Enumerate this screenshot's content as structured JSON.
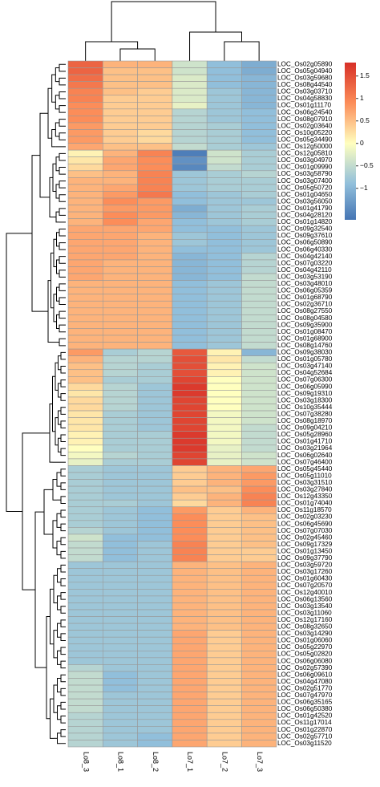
{
  "chart_data": {
    "type": "heatmap",
    "title": "",
    "xlabel": "",
    "ylabel": "",
    "columns": [
      "Lo8_3",
      "Lo8_1",
      "Lo8_2",
      "Lo7_1",
      "Lo7_2",
      "Lo7_3"
    ],
    "rows": [
      "LOC_Os02g05890",
      "LOC_Os05g04940",
      "LOC_Os03g59680",
      "LOC_Os08g44540",
      "LOC_Os03g03710",
      "LOC_Os04g58830",
      "LOC_Os01g11170",
      "LOC_Os06g24540",
      "LOC_Os08g07910",
      "LOC_Os02g03640",
      "LOC_Os10g05220",
      "LOC_Os05g34490",
      "LOC_Os12g50000",
      "LOC_Os12g05810",
      "LOC_Os03g04970",
      "LOC_Os01g09990",
      "LOC_Os03g58790",
      "LOC_Os03g07400",
      "LOC_Os05g50720",
      "LOC_Os01g04650",
      "LOC_Os03g56050",
      "LOC_Os01g41790",
      "LOC_Os04g28120",
      "LOC_Os01g14820",
      "LOC_Os09g32540",
      "LOC_Os09g37610",
      "LOC_Os06g50890",
      "LOC_Os06g40330",
      "LOC_Os04g42140",
      "LOC_Os07g03220",
      "LOC_Os04g42110",
      "LOC_Os03g53190",
      "LOC_Os03g48010",
      "LOC_Os06g05359",
      "LOC_Os01g68790",
      "LOC_Os02g36710",
      "LOC_Os08g27550",
      "LOC_Os08g04580",
      "LOC_Os09g35900",
      "LOC_Os01g08470",
      "LOC_Os01g68900",
      "LOC_Os08g14760",
      "LOC_Os09g38030",
      "LOC_Os01g05780",
      "LOC_Os03g47140",
      "LOC_Os04g52684",
      "LOC_Os07g06300",
      "LOC_Os06g05990",
      "LOC_Os09g19310",
      "LOC_Os03g18300",
      "LOC_Os10g35444",
      "LOC_Os07g38280",
      "LOC_Os08g18970",
      "LOC_Os09g04210",
      "LOC_Os05g28960",
      "LOC_Os01g41710",
      "LOC_Os03g21964",
      "LOC_Os06g02640",
      "LOC_Os07g46400",
      "LOC_Os05g45440",
      "LOC_Os05g11010",
      "LOC_Os03g31510",
      "LOC_Os03g27840",
      "LOC_Os12g43350",
      "LOC_Os01g74040",
      "LOC_Os11g18570",
      "LOC_Os02g03230",
      "LOC_Os06g45690",
      "LOC_Os07g07030",
      "LOC_Os02g45460",
      "LOC_Os09g17329",
      "LOC_Os01g13450",
      "LOC_Os09g37790",
      "LOC_Os03g59720",
      "LOC_Os03g17260",
      "LOC_Os01g60430",
      "LOC_Os07g20570",
      "LOC_Os12g40010",
      "LOC_Os06g13560",
      "LOC_Os03g13540",
      "LOC_Os03g11060",
      "LOC_Os12g17160",
      "LOC_Os08g32650",
      "LOC_Os03g14290",
      "LOC_Os01g06060",
      "LOC_Os05g22970",
      "LOC_Os05g02820",
      "LOC_Os06g06080",
      "LOC_Os02g57390",
      "LOC_Os06g09610",
      "LOC_Os04g47080",
      "LOC_Os02g51770",
      "LOC_Os07g47970",
      "LOC_Os06g35165",
      "LOC_Os06g50380",
      "LOC_Os01g42520",
      "LOC_Os11g17014",
      "LOC_Os01g22870",
      "LOC_Os02g57710",
      "LOC_Os03g11520"
    ],
    "values": [
      [
        1.3,
        0.6,
        0.6,
        -0.4,
        -0.9,
        -1.1
      ],
      [
        1.3,
        0.5,
        0.5,
        -0.4,
        -0.9,
        -1.1
      ],
      [
        1.2,
        0.5,
        0.5,
        -0.3,
        -0.9,
        -1.0
      ],
      [
        1.1,
        0.5,
        0.5,
        -0.3,
        -0.9,
        -1.0
      ],
      [
        1.0,
        0.5,
        0.4,
        -0.3,
        -0.8,
        -1.0
      ],
      [
        1.0,
        0.4,
        0.4,
        -0.3,
        -0.8,
        -1.0
      ],
      [
        0.9,
        0.4,
        0.4,
        -0.2,
        -0.8,
        -1.0
      ],
      [
        0.9,
        0.4,
        0.4,
        -0.6,
        -0.8,
        -0.9
      ],
      [
        0.9,
        0.4,
        0.4,
        -0.6,
        -0.8,
        -0.9
      ],
      [
        0.8,
        0.4,
        0.4,
        -0.6,
        -0.7,
        -0.9
      ],
      [
        0.8,
        0.4,
        0.3,
        -0.6,
        -0.7,
        -0.9
      ],
      [
        0.8,
        0.4,
        0.3,
        -0.6,
        -0.7,
        -0.9
      ],
      [
        0.7,
        0.5,
        0.5,
        -0.5,
        -0.7,
        -0.8
      ],
      [
        0.1,
        0.6,
        1.0,
        -1.6,
        -0.4,
        -0.7
      ],
      [
        0.2,
        0.7,
        0.9,
        -1.4,
        -0.4,
        -0.7
      ],
      [
        0.3,
        0.7,
        0.9,
        -1.5,
        -0.5,
        -0.7
      ],
      [
        0.5,
        0.6,
        1.0,
        -0.8,
        -0.7,
        -0.6
      ],
      [
        0.6,
        0.6,
        1.0,
        -0.8,
        -0.7,
        -0.7
      ],
      [
        0.6,
        0.7,
        1.0,
        -0.8,
        -0.7,
        -0.7
      ],
      [
        0.6,
        0.8,
        1.1,
        -0.9,
        -0.8,
        -0.7
      ],
      [
        0.6,
        0.9,
        0.8,
        -0.9,
        -0.8,
        -0.8
      ],
      [
        0.6,
        0.8,
        0.8,
        -1.1,
        -0.8,
        -0.7
      ],
      [
        0.6,
        0.9,
        0.8,
        -1.0,
        -0.8,
        -0.7
      ],
      [
        0.6,
        0.9,
        0.7,
        -0.9,
        -0.8,
        -0.7
      ],
      [
        0.7,
        0.7,
        0.7,
        -0.9,
        -0.9,
        -0.8
      ],
      [
        0.7,
        0.7,
        0.6,
        -0.8,
        -0.9,
        -0.8
      ],
      [
        0.7,
        0.7,
        0.6,
        -0.8,
        -0.9,
        -0.8
      ],
      [
        0.7,
        0.7,
        0.6,
        -0.9,
        -0.9,
        -0.8
      ],
      [
        0.7,
        0.7,
        0.6,
        -1.0,
        -0.9,
        -0.6
      ],
      [
        0.7,
        0.6,
        0.6,
        -1.0,
        -0.9,
        -0.6
      ],
      [
        0.7,
        0.6,
        0.6,
        -1.0,
        -0.9,
        -0.6
      ],
      [
        0.7,
        0.6,
        0.6,
        -1.0,
        -0.9,
        -0.5
      ],
      [
        0.6,
        0.6,
        0.6,
        -0.9,
        -0.8,
        -0.5
      ],
      [
        0.6,
        0.6,
        0.6,
        -0.9,
        -0.8,
        -0.5
      ],
      [
        0.6,
        0.6,
        0.6,
        -0.9,
        -0.8,
        -0.5
      ],
      [
        0.6,
        0.6,
        0.6,
        -0.9,
        -0.8,
        -0.5
      ],
      [
        0.6,
        0.6,
        0.6,
        -0.9,
        -0.8,
        -0.5
      ],
      [
        0.6,
        0.6,
        0.6,
        -0.9,
        -0.8,
        -0.5
      ],
      [
        0.6,
        0.6,
        0.6,
        -0.9,
        -0.8,
        -0.5
      ],
      [
        0.6,
        0.6,
        0.6,
        -0.9,
        -0.8,
        -0.5
      ],
      [
        0.6,
        0.6,
        0.6,
        -0.9,
        -0.8,
        -0.5
      ],
      [
        0.6,
        0.6,
        0.6,
        -0.9,
        -0.8,
        -0.5
      ],
      [
        0.8,
        -0.7,
        -0.6,
        1.4,
        0.1,
        -1.0
      ],
      [
        0.6,
        -0.6,
        -0.6,
        1.5,
        0.2,
        -0.5
      ],
      [
        0.5,
        -0.6,
        -0.7,
        1.5,
        0.1,
        -0.4
      ],
      [
        0.5,
        -0.6,
        -0.7,
        1.5,
        0.1,
        -0.4
      ],
      [
        0.5,
        -0.7,
        -0.7,
        1.6,
        0.0,
        -0.4
      ],
      [
        0.3,
        -0.6,
        -0.8,
        1.7,
        0.0,
        -0.4
      ],
      [
        0.2,
        -0.6,
        -0.8,
        1.7,
        0.0,
        -0.4
      ],
      [
        0.3,
        -0.6,
        -0.8,
        1.6,
        0.0,
        -0.4
      ],
      [
        0.3,
        -0.6,
        -0.8,
        1.6,
        0.0,
        -0.4
      ],
      [
        0.2,
        -0.7,
        -0.8,
        1.6,
        -0.1,
        -0.4
      ],
      [
        0.2,
        -0.7,
        -0.8,
        1.6,
        -0.1,
        -0.4
      ],
      [
        0.2,
        -0.7,
        -0.8,
        1.6,
        -0.1,
        -0.5
      ],
      [
        0.1,
        -0.7,
        -0.7,
        1.7,
        -0.1,
        -0.5
      ],
      [
        0.1,
        -0.7,
        -0.7,
        1.7,
        -0.1,
        -0.5
      ],
      [
        0.0,
        -0.7,
        -0.7,
        1.7,
        -0.2,
        -0.5
      ],
      [
        -0.1,
        -0.6,
        -0.7,
        1.6,
        -0.2,
        -0.4
      ],
      [
        -0.2,
        -0.7,
        -0.7,
        1.6,
        -0.2,
        -0.4
      ],
      [
        -0.7,
        -0.8,
        -0.8,
        0.4,
        0.6,
        0.7
      ],
      [
        -0.7,
        -0.8,
        -0.8,
        0.4,
        0.6,
        0.8
      ],
      [
        -0.7,
        -0.8,
        -0.8,
        0.4,
        0.6,
        0.8
      ],
      [
        -0.7,
        -0.8,
        -0.8,
        0.5,
        0.5,
        0.9
      ],
      [
        -0.7,
        -0.8,
        -0.8,
        0.4,
        0.6,
        1.0
      ],
      [
        -0.7,
        -0.7,
        -0.8,
        0.3,
        0.6,
        1.0
      ],
      [
        -0.7,
        -0.8,
        -0.9,
        0.8,
        0.4,
        0.6
      ],
      [
        -0.7,
        -0.8,
        -0.9,
        0.9,
        0.4,
        0.5
      ],
      [
        -0.7,
        -0.8,
        -0.9,
        0.9,
        0.4,
        0.5
      ],
      [
        -0.6,
        -0.8,
        -0.9,
        0.9,
        0.4,
        0.5
      ],
      [
        -0.4,
        -0.9,
        -0.9,
        0.9,
        0.4,
        0.5
      ],
      [
        -0.5,
        -0.9,
        -0.8,
        1.0,
        0.4,
        0.5
      ],
      [
        -0.5,
        -0.9,
        -0.8,
        1.0,
        0.4,
        0.4
      ],
      [
        -0.5,
        -0.9,
        -0.8,
        1.0,
        0.4,
        0.4
      ],
      [
        -0.8,
        -0.8,
        -0.8,
        0.6,
        0.5,
        0.6
      ],
      [
        -0.8,
        -0.8,
        -0.8,
        0.6,
        0.5,
        0.6
      ],
      [
        -0.8,
        -0.8,
        -0.8,
        0.6,
        0.5,
        0.6
      ],
      [
        -0.8,
        -0.8,
        -0.8,
        0.6,
        0.5,
        0.6
      ],
      [
        -0.8,
        -0.8,
        -0.8,
        0.6,
        0.5,
        0.6
      ],
      [
        -0.8,
        -0.8,
        -0.8,
        0.6,
        0.5,
        0.6
      ],
      [
        -0.8,
        -0.8,
        -0.8,
        0.6,
        0.5,
        0.6
      ],
      [
        -0.8,
        -0.8,
        -0.8,
        0.6,
        0.5,
        0.6
      ],
      [
        -0.8,
        -0.8,
        -0.8,
        0.6,
        0.5,
        0.6
      ],
      [
        -0.8,
        -0.8,
        -0.8,
        0.6,
        0.5,
        0.6
      ],
      [
        -0.8,
        -0.8,
        -0.8,
        0.7,
        0.4,
        0.6
      ],
      [
        -0.8,
        -0.8,
        -0.8,
        0.7,
        0.4,
        0.6
      ],
      [
        -0.8,
        -0.8,
        -0.8,
        0.7,
        0.4,
        0.6
      ],
      [
        -0.8,
        -0.8,
        -0.8,
        0.7,
        0.4,
        0.6
      ],
      [
        -0.8,
        -0.8,
        -0.8,
        0.7,
        0.4,
        0.6
      ],
      [
        -0.6,
        -0.8,
        -0.8,
        0.7,
        0.4,
        0.6
      ],
      [
        -0.5,
        -0.9,
        -0.8,
        0.7,
        0.4,
        0.6
      ],
      [
        -0.5,
        -0.9,
        -0.8,
        0.7,
        0.4,
        0.6
      ],
      [
        -0.5,
        -0.9,
        -0.8,
        0.7,
        0.4,
        0.6
      ],
      [
        -0.5,
        -0.8,
        -0.8,
        0.7,
        0.4,
        0.6
      ],
      [
        -0.5,
        -0.8,
        -0.8,
        0.7,
        0.4,
        0.6
      ],
      [
        -0.5,
        -0.8,
        -0.8,
        0.7,
        0.4,
        0.6
      ],
      [
        -0.6,
        -0.8,
        -0.8,
        0.7,
        0.4,
        0.6
      ],
      [
        -0.6,
        -0.8,
        -0.8,
        0.7,
        0.4,
        0.6
      ],
      [
        -0.6,
        -0.8,
        -0.8,
        0.7,
        0.4,
        0.6
      ],
      [
        -0.6,
        -0.8,
        -0.9,
        0.7,
        0.4,
        0.6
      ],
      [
        -0.6,
        -0.8,
        -0.9,
        0.7,
        0.4,
        0.6
      ]
    ],
    "colorscale": {
      "min": -1.7,
      "max": 1.8,
      "stops": [
        {
          "value": -1.7,
          "color": "#4575b4"
        },
        {
          "value": -0.9,
          "color": "#91bfdb"
        },
        {
          "value": 0.0,
          "color": "#ffffbf"
        },
        {
          "value": 0.9,
          "color": "#fc8d59"
        },
        {
          "value": 1.8,
          "color": "#d73027"
        }
      ]
    },
    "legend": {
      "position": "top-right",
      "ticks": [
        {
          "value": 1.5,
          "label": "1.5"
        },
        {
          "value": 1,
          "label": "1"
        },
        {
          "value": 0.5,
          "label": "0.5"
        },
        {
          "value": 0,
          "label": "0"
        },
        {
          "value": -0.5,
          "label": "−0.5"
        },
        {
          "value": -1,
          "label": "−1"
        }
      ]
    },
    "cell_border_color": "#999999",
    "dendrogram_color": "#000000"
  }
}
